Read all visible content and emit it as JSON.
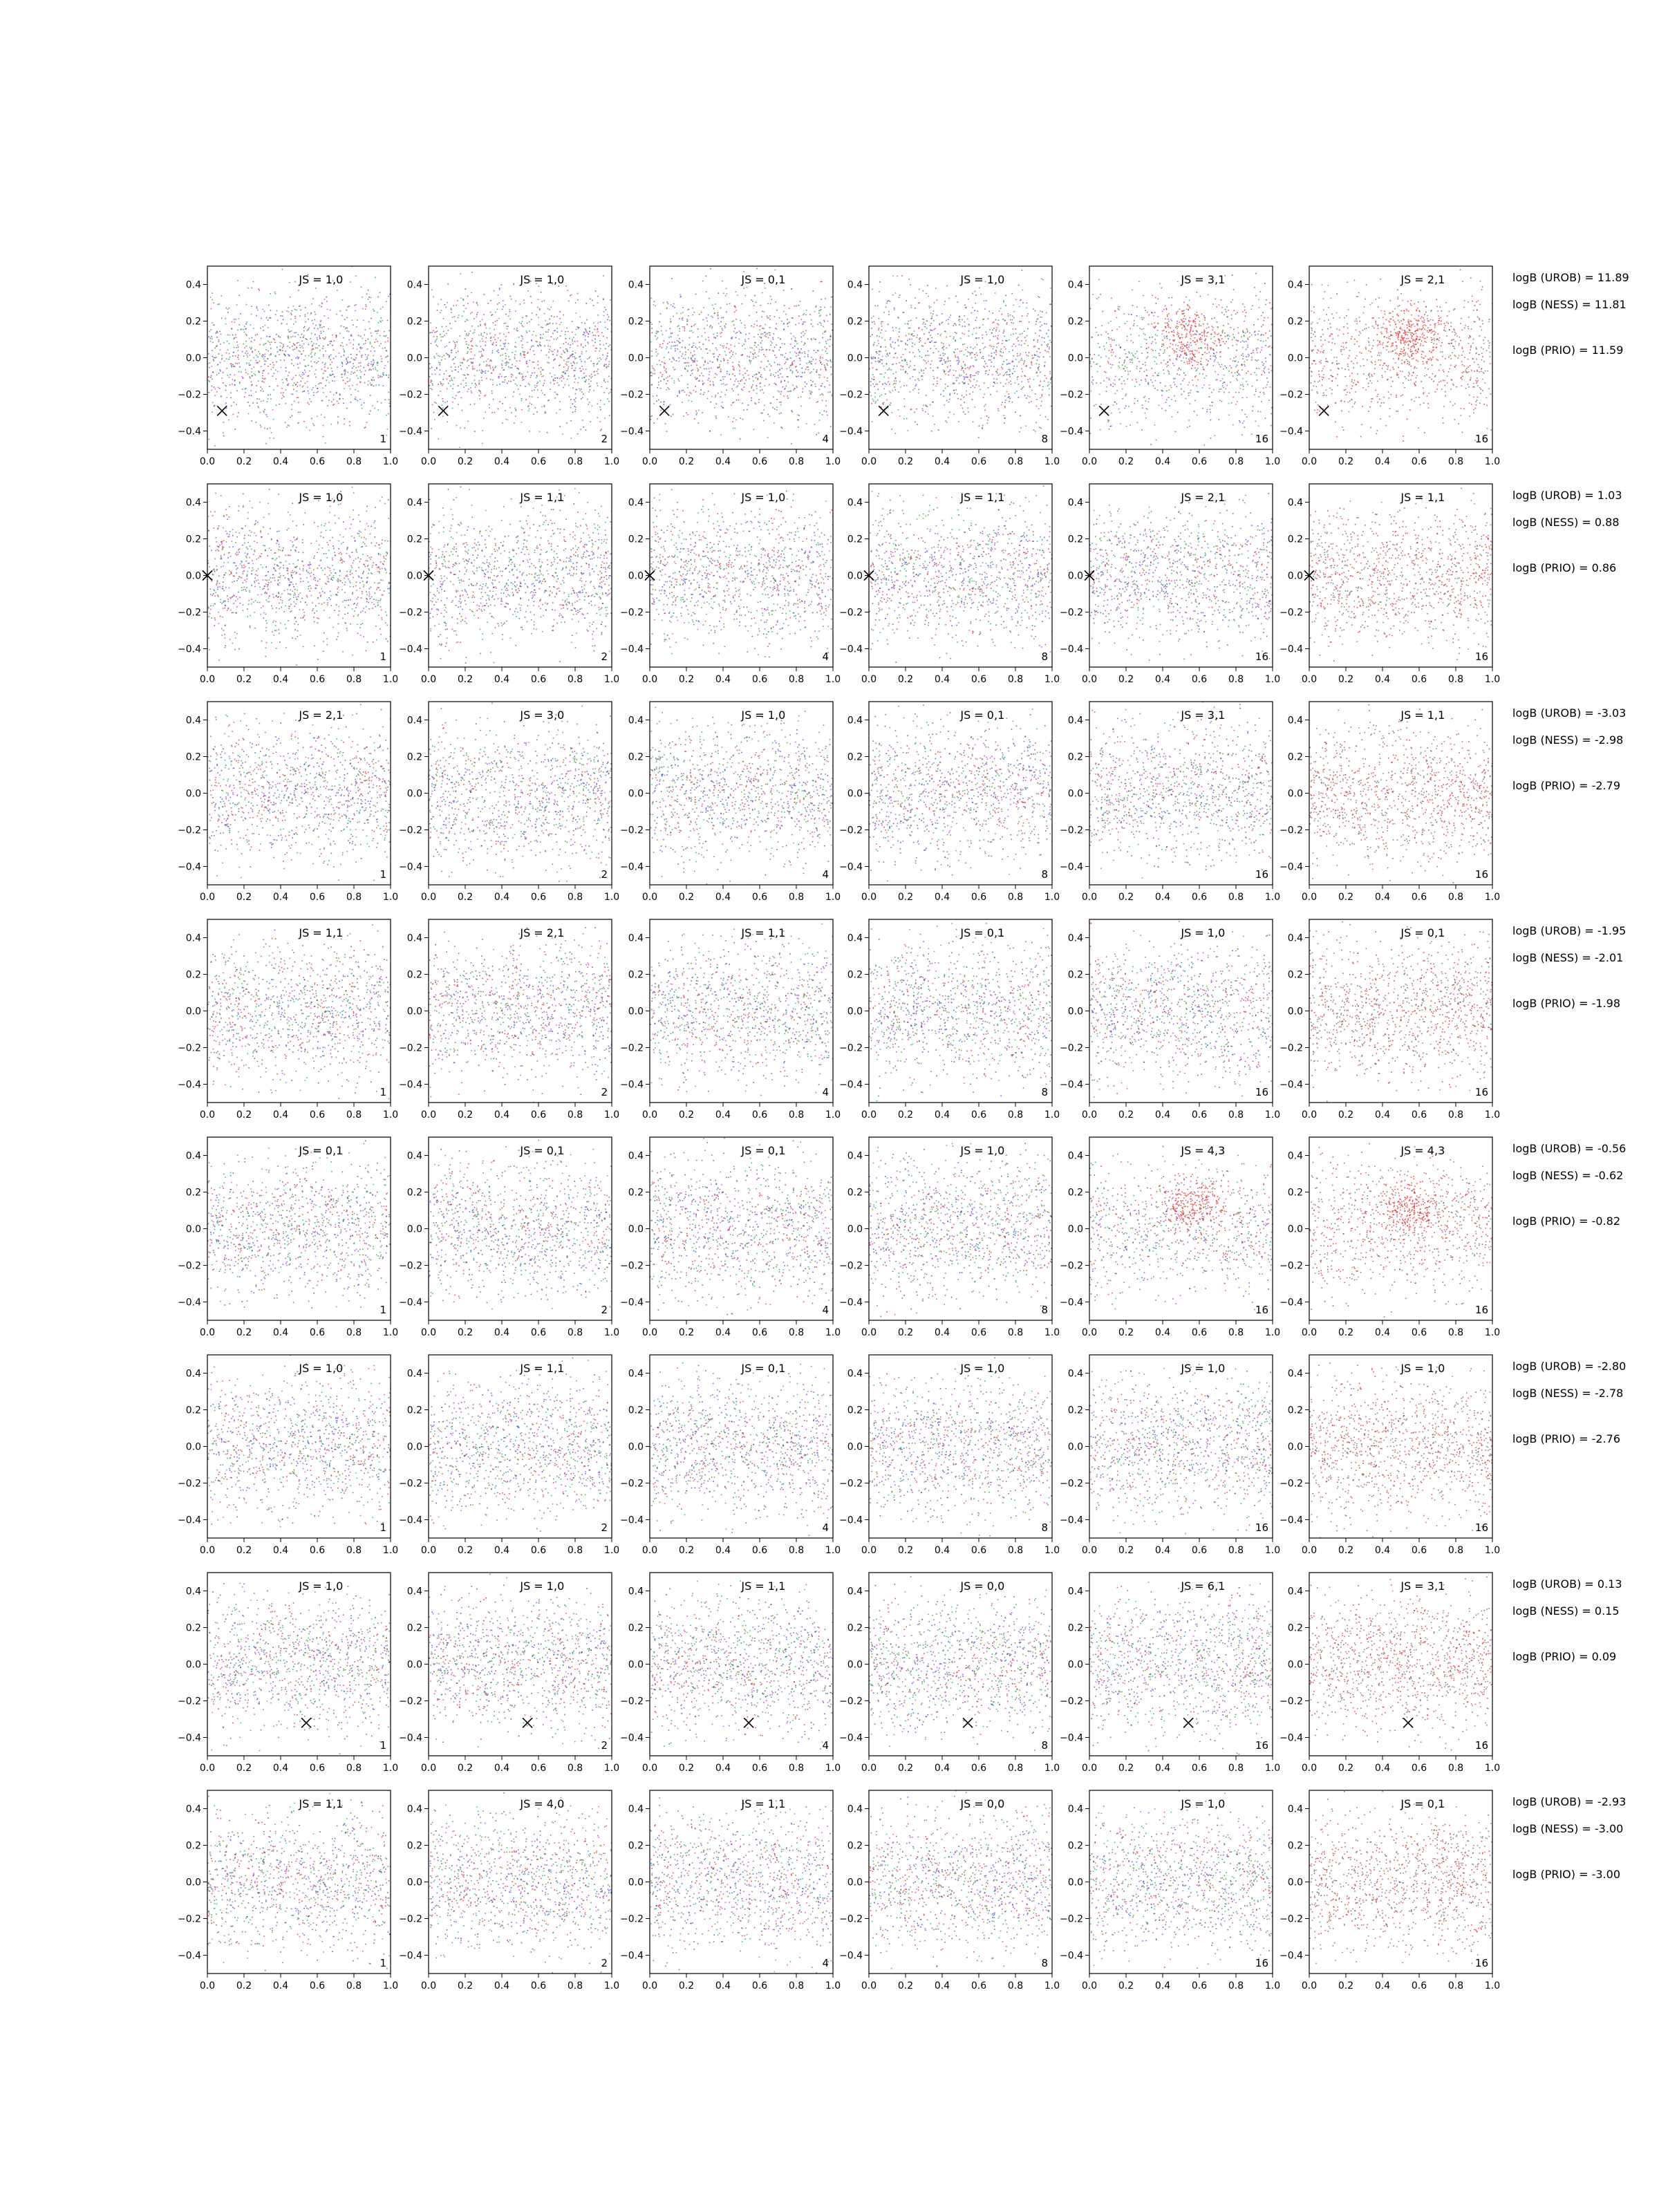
{
  "chart_data": {
    "type": "scatter",
    "grid": false,
    "xlim": [
      0.0,
      1.0
    ],
    "ylim": [
      -0.5,
      0.5
    ],
    "xticks": [
      "0.0",
      "0.2",
      "0.4",
      "0.6",
      "0.8",
      "1.0"
    ],
    "yticks": [
      "0.4",
      "0.2",
      "0.0",
      "−0.2",
      "−0.4"
    ],
    "colors": {
      "red": "#e31a1c",
      "blue": "#1f3fd8",
      "green": "#1a9a3a",
      "purple": "#a030c0",
      "black": "#222222"
    },
    "columns": [
      {
        "label": "1",
        "palette": [
          "red",
          "blue",
          "green",
          "purple",
          "black"
        ]
      },
      {
        "label": "2",
        "palette": [
          "red",
          "blue",
          "green",
          "purple",
          "black"
        ]
      },
      {
        "label": "4",
        "palette": [
          "red",
          "blue",
          "green",
          "purple",
          "black"
        ]
      },
      {
        "label": "8",
        "palette": [
          "red",
          "blue",
          "green",
          "purple",
          "black"
        ]
      },
      {
        "label": "16",
        "palette": [
          "red",
          "blue",
          "green",
          "purple",
          "black"
        ]
      },
      {
        "label": "16",
        "palette": [
          "red",
          "black"
        ]
      }
    ],
    "rows": [
      {
        "js": [
          "JS = 1,0",
          "JS = 1,0",
          "JS = 0,1",
          "JS = 1,0",
          "JS = 3,1",
          "JS = 2,1"
        ],
        "marker": [
          0.08,
          -0.29
        ],
        "logB": [
          "logB (UROB) = 11.89",
          "logB (NESS) = 11.81",
          "logB (PRIO) = 11.59"
        ]
      },
      {
        "js": [
          "JS = 1,0",
          "JS = 1,1",
          "JS = 1,0",
          "JS = 1,1",
          "JS = 2,1",
          "JS = 1,1"
        ],
        "marker": [
          0.0,
          0.0
        ],
        "logB": [
          "logB (UROB) = 1.03",
          "logB (NESS) = 0.88",
          "logB (PRIO) = 0.86"
        ]
      },
      {
        "js": [
          "JS = 2,1",
          "JS = 3,0",
          "JS = 1,0",
          "JS = 0,1",
          "JS = 3,1",
          "JS = 1,1"
        ],
        "marker": null,
        "logB": [
          "logB (UROB) = -3.03",
          "logB (NESS) = -2.98",
          "logB (PRIO) = -2.79"
        ]
      },
      {
        "js": [
          "JS = 1,1",
          "JS = 2,1",
          "JS = 1,1",
          "JS = 0,1",
          "JS = 1,0",
          "JS = 0,1"
        ],
        "marker": null,
        "logB": [
          "logB (UROB) = -1.95",
          "logB (NESS) = -2.01",
          "logB (PRIO) = -1.98"
        ]
      },
      {
        "js": [
          "JS = 0,1",
          "JS = 0,1",
          "JS = 0,1",
          "JS = 1,0",
          "JS = 4,3",
          "JS = 4,3"
        ],
        "marker": null,
        "logB": [
          "logB (UROB) = -0.56",
          "logB (NESS) = -0.62",
          "logB (PRIO) = -0.82"
        ]
      },
      {
        "js": [
          "JS = 1,0",
          "JS = 1,1",
          "JS = 0,1",
          "JS = 1,0",
          "JS = 1,0",
          "JS = 1,0"
        ],
        "marker": null,
        "logB": [
          "logB (UROB) = -2.80",
          "logB (NESS) = -2.78",
          "logB (PRIO) = -2.76"
        ]
      },
      {
        "js": [
          "JS = 1,0",
          "JS = 1,0",
          "JS = 1,1",
          "JS = 0,0",
          "JS = 6,1",
          "JS = 3,1"
        ],
        "marker": [
          0.54,
          -0.32
        ],
        "logB": [
          "logB (UROB) = 0.13",
          "logB (NESS) = 0.15",
          "logB (PRIO) = 0.09"
        ]
      },
      {
        "js": [
          "JS = 1,1",
          "JS = 4,0",
          "JS = 1,1",
          "JS = 0,0",
          "JS = 1,0",
          "JS = 0,1"
        ],
        "marker": null,
        "logB": [
          "logB (UROB) = -2.93",
          "logB (NESS) = -3.00",
          "logB (PRIO) = -3.00"
        ]
      }
    ]
  }
}
